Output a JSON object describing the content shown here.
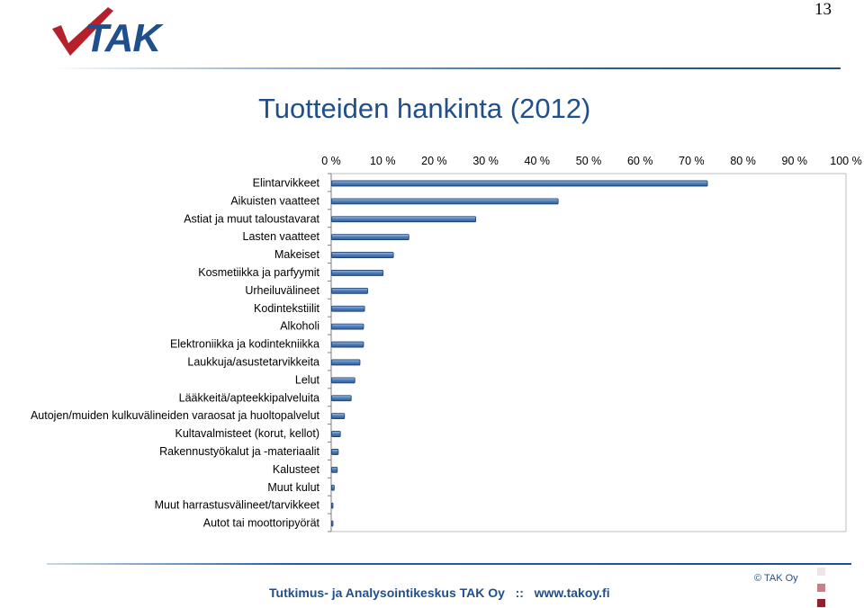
{
  "page_number": "13",
  "logo_text": "TAK",
  "chart_data": {
    "type": "bar",
    "orientation": "horizontal",
    "title": "Tuotteiden hankinta (2012)",
    "categories": [
      "Elintarvikkeet",
      "Aikuisten vaatteet",
      "Astiat ja muut taloustavarat",
      "Lasten vaatteet",
      "Makeiset",
      "Kosmetiikka ja parfyymit",
      "Urheiluvälineet",
      "Kodintekstiilit",
      "Alkoholi",
      "Elektroniikka ja kodintekniikka",
      "Laukkuja/asustetarvikkeita",
      "Lelut",
      "Lääkkeitä/apteekkipalveluita",
      "Autojen/muiden kulkuvälineiden varaosat ja huoltopalvelut",
      "Kultavalmisteet (korut, kellot)",
      "Rakennustyökalut ja -materiaalit",
      "Kalusteet",
      "Muut kulut",
      "Muut harrastusvälineet/tarvikkeet",
      "Autot tai moottoripyörät"
    ],
    "values": [
      73,
      44,
      28,
      15,
      12,
      10,
      7,
      6.4,
      6.2,
      6.2,
      5.5,
      4.5,
      3.8,
      2.5,
      1.7,
      1.3,
      1.1,
      0.5,
      0.2,
      0.2
    ],
    "xlim": [
      0,
      100
    ],
    "xticks": [
      "0 %",
      "10 %",
      "20 %",
      "30 %",
      "40 %",
      "50 %",
      "60 %",
      "70 %",
      "80 %",
      "90 %",
      "100 %"
    ],
    "axis_position": "top",
    "grid": false,
    "bar_color": "#4f81bd"
  },
  "footer": {
    "text": "Tutkimus- ja Analysointikeskus TAK Oy   ::   www.takoy.fi",
    "copyright": "© TAK Oy"
  },
  "colors": {
    "brand_blue": "#1f4f8c",
    "accent_red": "#b5212a",
    "square_light": "#f0e4e6",
    "square_mid": "#c97f87",
    "square_dark": "#8b2230"
  }
}
